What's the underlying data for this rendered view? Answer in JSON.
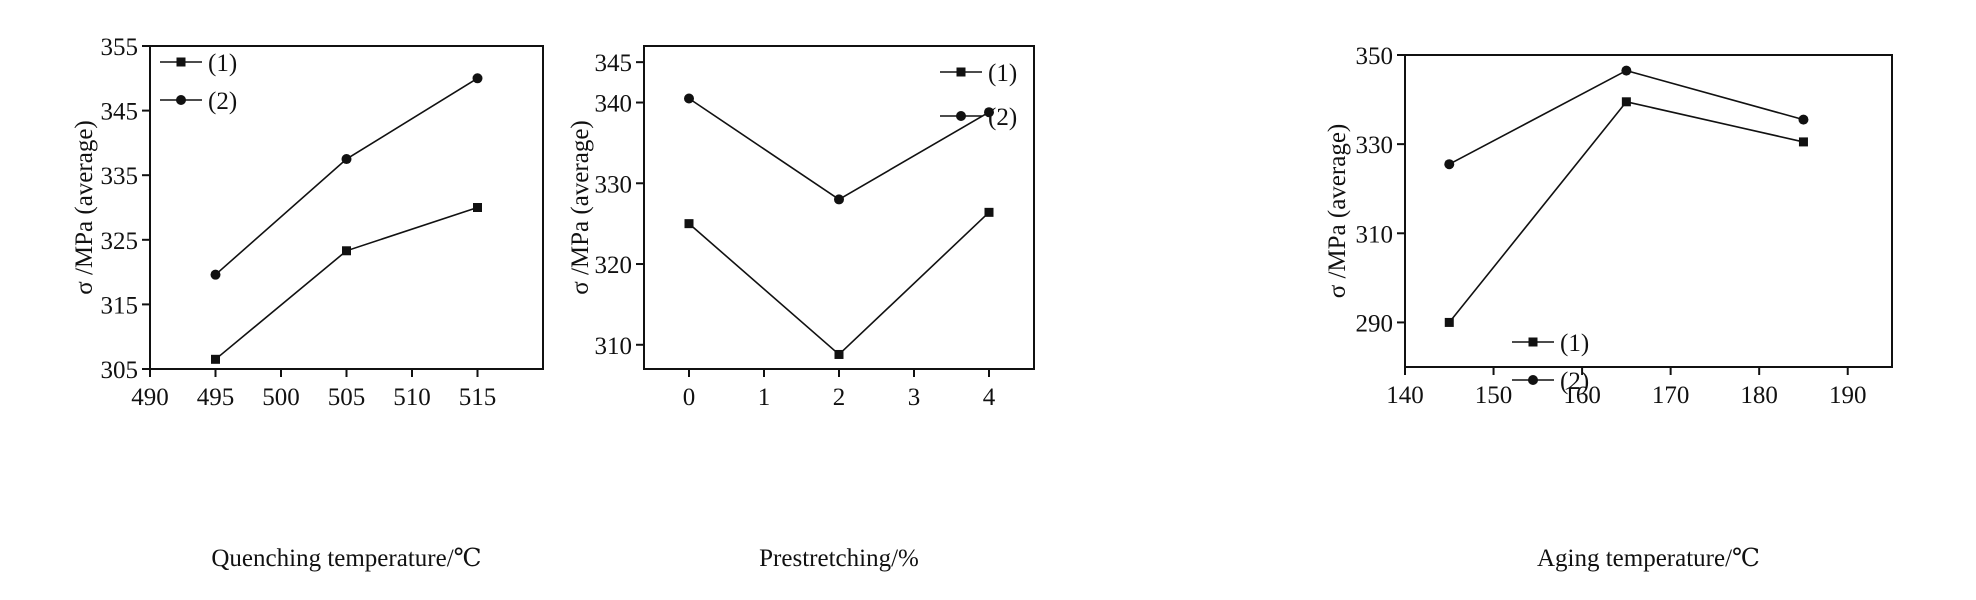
{
  "chart_data": [
    {
      "type": "line",
      "xlabel": "Quenching temperature/℃",
      "ylabel": "σ /MPa (average)",
      "xlim": [
        490,
        520
      ],
      "ylim": [
        305,
        355
      ],
      "xticks": [
        490,
        495,
        500,
        505,
        510,
        515
      ],
      "yticks": [
        305,
        315,
        325,
        335,
        345,
        355
      ],
      "x": [
        495,
        505,
        515
      ],
      "series": [
        {
          "name": "(1)",
          "marker": "square",
          "values": [
            306.5,
            323.3,
            330.0
          ]
        },
        {
          "name": "(2)",
          "marker": "circle",
          "values": [
            319.6,
            337.5,
            350.0
          ]
        }
      ],
      "legend_position": "top-left"
    },
    {
      "type": "line",
      "xlabel": "Prestretching/%",
      "ylabel": "σ /MPa (average)",
      "xlim": [
        -0.6,
        4.6
      ],
      "ylim": [
        307,
        347
      ],
      "xticks": [
        0,
        1,
        2,
        3,
        4
      ],
      "yticks": [
        310,
        320,
        330,
        340,
        345
      ],
      "x": [
        0,
        2,
        4
      ],
      "series": [
        {
          "name": "(1)",
          "marker": "square",
          "values": [
            325.0,
            308.8,
            326.4
          ]
        },
        {
          "name": "(2)",
          "marker": "circle",
          "values": [
            340.5,
            328.0,
            338.8
          ]
        }
      ],
      "legend_position": "top-center"
    },
    {
      "type": "line",
      "xlabel": "Aging temperature/℃",
      "ylabel": "σ /MPa (average)",
      "xlim": [
        140,
        195
      ],
      "ylim": [
        280,
        350
      ],
      "xticks": [
        140,
        150,
        160,
        170,
        180,
        190
      ],
      "yticks": [
        290,
        310,
        330,
        350
      ],
      "x": [
        145,
        165,
        185
      ],
      "series": [
        {
          "name": "(1)",
          "marker": "square",
          "values": [
            290.0,
            339.5,
            330.5
          ]
        },
        {
          "name": "(2)",
          "marker": "circle",
          "values": [
            325.5,
            346.5,
            335.5
          ]
        }
      ],
      "legend_position": "center-left"
    }
  ]
}
